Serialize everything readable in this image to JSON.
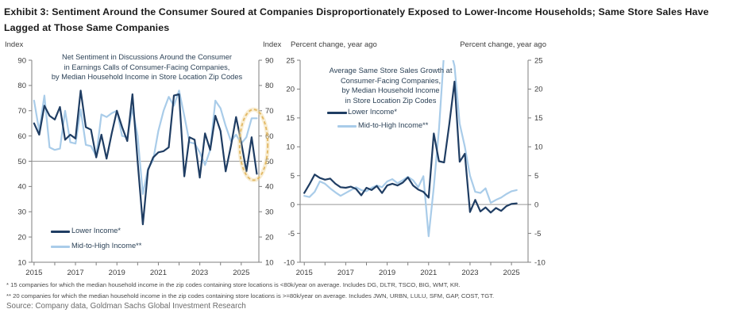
{
  "exhibit": {
    "title": "Exhibit 3: Sentiment Around the Consumer Soured at Companies Disproportionately Exposed to Lower-Income Households; Same Store Sales Have Lagged at Those Same Companies",
    "footnotes": [
      "* 15 companies for which the median household income in the zip codes containing store locations is <80k/year on average. Includes DG, DLTR, TSCO, BIG, WMT, KR.",
      "** 20 companies for which the median household income in the zip codes containing store locations is >=80k/year on average. Includes JWN, URBN, LULU, SFM, GAP, COST, TGT."
    ],
    "source": "Source: Company data, Goldman Sachs Global Investment Research"
  },
  "colors": {
    "lower_income": "#1f3d63",
    "mid_high_income": "#a9cce9",
    "axis": "#7f7f7f",
    "reference_line": "#999999",
    "highlight_ellipse": "#e0b45c",
    "highlight_ellipse_glow": "#f0d69c"
  },
  "chart_data": [
    {
      "type": "line",
      "title": "Net Sentiment in Discussions Around the Consumer in Earnings Calls of Consumer-Facing Companies, by Median Household Income in Store Location Zip Codes",
      "title_lines": [
        "Net Sentiment in Discussions Around the Consumer",
        "in Earnings Calls of Consumer-Facing Companies,",
        "by Median Household Income in Store Location Zip Codes"
      ],
      "axis_label_left": "Index",
      "axis_label_right": "Index",
      "frequency": "quarterly",
      "x_start": 2015.0,
      "x_step": 0.25,
      "xlim": [
        2014.89,
        2025.85
      ],
      "ylim": [
        10,
        90
      ],
      "x_ticks": [
        2015,
        2017,
        2019,
        2021,
        2023,
        2025
      ],
      "x_minor_ticks": [
        2015,
        2016,
        2017,
        2018,
        2019,
        2020,
        2021,
        2022,
        2023,
        2024,
        2025
      ],
      "y_ticks": [
        10,
        20,
        30,
        40,
        50,
        60,
        70,
        80,
        90
      ],
      "reference_line": 50,
      "grid": false,
      "legend_position": "bottom-left-inside",
      "series": [
        {
          "name": "Lower Income*",
          "color_key": "lower_income",
          "values": [
            65,
            60.5,
            72,
            68,
            66.5,
            71.5,
            58.5,
            60.5,
            59,
            78,
            63.5,
            62.5,
            51.5,
            60.5,
            51,
            61,
            70,
            63.5,
            58,
            76.5,
            50,
            25,
            46.5,
            51.5,
            53.5,
            54,
            55.5,
            76,
            76.5,
            44,
            59.5,
            58.5,
            43.5,
            61,
            54.5,
            68,
            62,
            46,
            56,
            67.5,
            57.5,
            46,
            59.5,
            45
          ]
        },
        {
          "name": "Mid-to-High Income**",
          "color_key": "mid_high_income",
          "values": [
            74,
            62,
            76,
            55.5,
            54.5,
            55,
            70,
            57.5,
            57,
            70.5,
            56.5,
            56,
            52,
            68.5,
            67.5,
            69,
            70,
            60,
            59.5,
            71,
            60,
            37,
            47,
            50.5,
            62,
            70,
            75.5,
            72,
            78,
            68,
            57.5,
            57,
            53.5,
            48.5,
            54.5,
            74,
            71,
            64,
            58,
            60.5,
            57,
            59.5,
            67,
            67
          ]
        }
      ],
      "annotation": {
        "shape": "ellipse",
        "x": 2025.6,
        "y": 56.5,
        "rx": 0.68,
        "ry": 14,
        "meaning": "highlights recent divergence at end of series"
      }
    },
    {
      "type": "line",
      "title": "Average Same Store Sales Growth at Consumer-Facing Companies, by Median Household Income in Store Location Zip Codes",
      "title_lines": [
        "Average Same Store Sales Growth at",
        "Consumer-Facing  Companies,",
        "by Median Household Income",
        "in Store Location Zip Codes"
      ],
      "axis_label_left": "Percent change, year ago",
      "axis_label_right": "Percent change, year ago",
      "frequency": "quarterly",
      "x_start": 2015.0,
      "x_step": 0.25,
      "xlim": [
        2014.8,
        2025.8
      ],
      "ylim": [
        -10,
        25
      ],
      "x_ticks": [
        2015,
        2017,
        2019,
        2021,
        2023,
        2025
      ],
      "x_minor_ticks": [
        2015,
        2016,
        2017,
        2018,
        2019,
        2020,
        2021,
        2022,
        2023,
        2024,
        2025
      ],
      "y_ticks": [
        -10,
        -5,
        0,
        5,
        10,
        15,
        20,
        25
      ],
      "reference_line": 0,
      "grid": false,
      "legend_position": "top-left-inside",
      "series": [
        {
          "name": "Lower Income*",
          "color_key": "lower_income",
          "values": [
            2.0,
            3.5,
            5.2,
            4.6,
            4.3,
            4.5,
            3.6,
            3.0,
            2.9,
            3.1,
            2.7,
            1.6,
            2.9,
            2.5,
            3.2,
            2.0,
            3.3,
            3.6,
            3.3,
            3.8,
            4.7,
            3.3,
            2.6,
            2.2,
            1.2,
            12.3,
            7.5,
            7.3,
            14.0,
            21.3,
            7.4,
            8.8,
            -1.3,
            0.8,
            -1.2,
            -0.5,
            -1.4,
            -0.6,
            -1.1,
            -0.3,
            0.1,
            0.2
          ]
        },
        {
          "name": "Mid-to-High Income**",
          "color_key": "mid_high_income",
          "values": [
            1.5,
            1.3,
            2.2,
            4.0,
            3.6,
            2.8,
            2.1,
            1.5,
            2.0,
            2.5,
            3.0,
            2.5,
            2.3,
            2.9,
            3.3,
            3.0,
            4.0,
            4.4,
            3.7,
            4.2,
            4.8,
            4.2,
            3.0,
            4.9,
            -5.5,
            3.0,
            13.0,
            26.5,
            27.5,
            24.0,
            14.0,
            10.0,
            5.0,
            2.2,
            2.0,
            2.8,
            0.3,
            0.8,
            1.2,
            1.8,
            2.3,
            2.5
          ]
        }
      ]
    }
  ]
}
